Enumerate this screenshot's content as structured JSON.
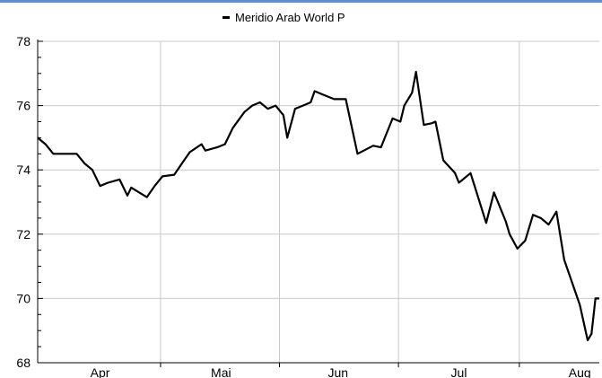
{
  "chart_data": {
    "type": "line",
    "title": "",
    "xlabel": "",
    "ylabel": "",
    "legend_placement": "top-center",
    "grid": true,
    "ylim": [
      68,
      78
    ],
    "y_ticks": [
      68,
      70,
      72,
      74,
      76,
      78
    ],
    "xlim": [
      0,
      144
    ],
    "x_ticks": [
      {
        "label": "Apr",
        "pos": 16
      },
      {
        "label": "Mai",
        "pos": 47
      },
      {
        "label": "Jun",
        "pos": 77
      },
      {
        "label": "Jul",
        "pos": 108
      },
      {
        "label": "Aug",
        "pos": 139
      }
    ],
    "series": [
      {
        "name": "Meridio Arab World P",
        "color": "#000000",
        "x": [
          0,
          2,
          4,
          7,
          10,
          12,
          14,
          16,
          18,
          21,
          23,
          24,
          26,
          28,
          30,
          32,
          35,
          37,
          39,
          42,
          43,
          46,
          48,
          50,
          53,
          55,
          57,
          59,
          61,
          63,
          64,
          66,
          68,
          70,
          71,
          73,
          74,
          76,
          79,
          82,
          86,
          88,
          91,
          93,
          94,
          96,
          97,
          99,
          101,
          102,
          104,
          107,
          108,
          111,
          115,
          117,
          120,
          121,
          123,
          125,
          127,
          129,
          131,
          133,
          135,
          137,
          139,
          141,
          142,
          143,
          144
        ],
        "y": [
          75.0,
          74.8,
          74.5,
          74.5,
          74.5,
          74.2,
          74.0,
          73.5,
          73.6,
          73.7,
          73.2,
          73.45,
          73.3,
          73.15,
          73.5,
          73.8,
          73.85,
          74.2,
          74.55,
          74.8,
          74.6,
          74.7,
          74.8,
          75.3,
          75.8,
          76.0,
          76.1,
          75.9,
          76.0,
          75.7,
          75.0,
          75.9,
          76.0,
          76.1,
          76.45,
          76.35,
          76.3,
          76.2,
          76.2,
          74.5,
          74.75,
          74.7,
          75.6,
          75.5,
          76.0,
          76.4,
          77.05,
          75.4,
          75.45,
          75.5,
          74.3,
          73.9,
          73.6,
          73.9,
          72.35,
          73.3,
          72.4,
          72.0,
          71.55,
          71.8,
          72.6,
          72.5,
          72.3,
          72.7,
          71.2,
          70.5,
          69.8,
          68.7,
          68.9,
          70.0,
          70.0
        ]
      }
    ]
  }
}
